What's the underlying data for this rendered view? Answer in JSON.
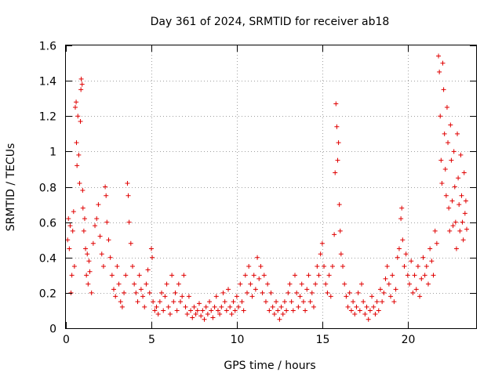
{
  "chart_data": {
    "type": "scatter",
    "title": "Day 361 of 2024, SRMTID for receiver ab18",
    "xlabel": "GPS time / hours",
    "ylabel": "SRMTID / TECUs",
    "xlim": [
      0,
      24
    ],
    "ylim": [
      0,
      1.6
    ],
    "xticks": [
      0,
      5,
      10,
      15,
      20
    ],
    "xtick_labels": [
      "0",
      "5",
      "10",
      "15",
      "20"
    ],
    "yticks": [
      0,
      0.2,
      0.4,
      0.6,
      0.8,
      1,
      1.2,
      1.4,
      1.6
    ],
    "ytick_labels": [
      "0",
      "0.2",
      "0.4",
      "0.6",
      "0.8",
      "1",
      "1.2",
      "1.4",
      "1.6"
    ],
    "grid": true,
    "marker": "+",
    "color": "#e00000",
    "series": [
      {
        "name": "SRMTID",
        "points": [
          [
            0.1,
            0.5
          ],
          [
            0.15,
            0.62
          ],
          [
            0.2,
            0.45
          ],
          [
            0.25,
            0.58
          ],
          [
            0.3,
            0.2
          ],
          [
            0.35,
            0.3
          ],
          [
            0.4,
            0.55
          ],
          [
            0.45,
            0.66
          ],
          [
            0.5,
            0.35
          ],
          [
            0.55,
            1.25
          ],
          [
            0.6,
            1.28
          ],
          [
            0.62,
            1.05
          ],
          [
            0.65,
            0.92
          ],
          [
            0.7,
            1.2
          ],
          [
            0.75,
            0.98
          ],
          [
            0.8,
            0.82
          ],
          [
            0.85,
            1.17
          ],
          [
            0.88,
            1.35
          ],
          [
            0.9,
            1.41
          ],
          [
            0.95,
            1.38
          ],
          [
            0.98,
            0.78
          ],
          [
            1.0,
            0.68
          ],
          [
            1.05,
            0.55
          ],
          [
            1.1,
            0.62
          ],
          [
            1.15,
            0.45
          ],
          [
            1.2,
            0.3
          ],
          [
            1.25,
            0.42
          ],
          [
            1.3,
            0.25
          ],
          [
            1.35,
            0.38
          ],
          [
            1.4,
            0.32
          ],
          [
            1.5,
            0.2
          ],
          [
            1.6,
            0.48
          ],
          [
            1.7,
            0.58
          ],
          [
            1.8,
            0.62
          ],
          [
            1.9,
            0.7
          ],
          [
            2.0,
            0.52
          ],
          [
            2.1,
            0.42
          ],
          [
            2.2,
            0.35
          ],
          [
            2.3,
            0.8
          ],
          [
            2.35,
            0.75
          ],
          [
            2.4,
            0.6
          ],
          [
            2.5,
            0.5
          ],
          [
            2.6,
            0.4
          ],
          [
            2.7,
            0.3
          ],
          [
            2.8,
            0.22
          ],
          [
            2.9,
            0.18
          ],
          [
            3.0,
            0.35
          ],
          [
            3.1,
            0.25
          ],
          [
            3.2,
            0.15
          ],
          [
            3.3,
            0.12
          ],
          [
            3.4,
            0.2
          ],
          [
            3.5,
            0.3
          ],
          [
            3.6,
            0.82
          ],
          [
            3.65,
            0.75
          ],
          [
            3.7,
            0.6
          ],
          [
            3.8,
            0.48
          ],
          [
            3.9,
            0.35
          ],
          [
            4.0,
            0.25
          ],
          [
            4.1,
            0.2
          ],
          [
            4.2,
            0.15
          ],
          [
            4.3,
            0.3
          ],
          [
            4.4,
            0.22
          ],
          [
            4.5,
            0.18
          ],
          [
            4.6,
            0.12
          ],
          [
            4.7,
            0.25
          ],
          [
            4.8,
            0.33
          ],
          [
            4.9,
            0.2
          ],
          [
            5.0,
            0.45
          ],
          [
            5.05,
            0.4
          ],
          [
            5.1,
            0.15
          ],
          [
            5.2,
            0.1
          ],
          [
            5.3,
            0.12
          ],
          [
            5.4,
            0.08
          ],
          [
            5.5,
            0.15
          ],
          [
            5.6,
            0.2
          ],
          [
            5.7,
            0.1
          ],
          [
            5.8,
            0.18
          ],
          [
            5.9,
            0.25
          ],
          [
            6.0,
            0.12
          ],
          [
            6.1,
            0.08
          ],
          [
            6.2,
            0.3
          ],
          [
            6.3,
            0.15
          ],
          [
            6.4,
            0.2
          ],
          [
            6.5,
            0.1
          ],
          [
            6.6,
            0.25
          ],
          [
            6.7,
            0.15
          ],
          [
            6.8,
            0.18
          ],
          [
            6.9,
            0.3
          ],
          [
            7.0,
            0.12
          ],
          [
            7.1,
            0.08
          ],
          [
            7.2,
            0.18
          ],
          [
            7.3,
            0.1
          ],
          [
            7.4,
            0.06
          ],
          [
            7.5,
            0.12
          ],
          [
            7.6,
            0.08
          ],
          [
            7.7,
            0.1
          ],
          [
            7.8,
            0.14
          ],
          [
            7.9,
            0.07
          ],
          [
            8.0,
            0.1
          ],
          [
            8.1,
            0.05
          ],
          [
            8.2,
            0.12
          ],
          [
            8.3,
            0.08
          ],
          [
            8.4,
            0.15
          ],
          [
            8.5,
            0.1
          ],
          [
            8.6,
            0.06
          ],
          [
            8.7,
            0.12
          ],
          [
            8.8,
            0.18
          ],
          [
            8.9,
            0.1
          ],
          [
            9.0,
            0.08
          ],
          [
            9.1,
            0.12
          ],
          [
            9.2,
            0.2
          ],
          [
            9.3,
            0.15
          ],
          [
            9.4,
            0.1
          ],
          [
            9.5,
            0.22
          ],
          [
            9.6,
            0.12
          ],
          [
            9.7,
            0.08
          ],
          [
            9.8,
            0.15
          ],
          [
            9.9,
            0.1
          ],
          [
            10.0,
            0.18
          ],
          [
            10.1,
            0.12
          ],
          [
            10.2,
            0.25
          ],
          [
            10.3,
            0.15
          ],
          [
            10.4,
            0.1
          ],
          [
            10.5,
            0.3
          ],
          [
            10.6,
            0.2
          ],
          [
            10.7,
            0.35
          ],
          [
            10.8,
            0.25
          ],
          [
            10.9,
            0.18
          ],
          [
            11.0,
            0.3
          ],
          [
            11.1,
            0.22
          ],
          [
            11.2,
            0.4
          ],
          [
            11.3,
            0.28
          ],
          [
            11.4,
            0.35
          ],
          [
            11.5,
            0.2
          ],
          [
            11.6,
            0.3
          ],
          [
            11.7,
            0.15
          ],
          [
            11.8,
            0.25
          ],
          [
            11.9,
            0.1
          ],
          [
            12.0,
            0.2
          ],
          [
            12.1,
            0.12
          ],
          [
            12.2,
            0.08
          ],
          [
            12.3,
            0.15
          ],
          [
            12.4,
            0.1
          ],
          [
            12.5,
            0.05
          ],
          [
            12.6,
            0.12
          ],
          [
            12.7,
            0.08
          ],
          [
            12.8,
            0.15
          ],
          [
            12.9,
            0.1
          ],
          [
            13.0,
            0.2
          ],
          [
            13.1,
            0.25
          ],
          [
            13.2,
            0.15
          ],
          [
            13.3,
            0.1
          ],
          [
            13.4,
            0.3
          ],
          [
            13.5,
            0.2
          ],
          [
            13.6,
            0.12
          ],
          [
            13.7,
            0.18
          ],
          [
            13.8,
            0.25
          ],
          [
            13.9,
            0.15
          ],
          [
            14.0,
            0.1
          ],
          [
            14.1,
            0.22
          ],
          [
            14.2,
            0.3
          ],
          [
            14.3,
            0.15
          ],
          [
            14.4,
            0.2
          ],
          [
            14.5,
            0.12
          ],
          [
            14.6,
            0.25
          ],
          [
            14.7,
            0.35
          ],
          [
            14.8,
            0.3
          ],
          [
            14.9,
            0.42
          ],
          [
            15.0,
            0.48
          ],
          [
            15.1,
            0.35
          ],
          [
            15.2,
            0.25
          ],
          [
            15.3,
            0.2
          ],
          [
            15.4,
            0.3
          ],
          [
            15.5,
            0.18
          ],
          [
            15.6,
            0.35
          ],
          [
            15.7,
            0.53
          ],
          [
            15.75,
            0.88
          ],
          [
            15.8,
            1.27
          ],
          [
            15.85,
            1.14
          ],
          [
            15.9,
            0.95
          ],
          [
            15.95,
            1.05
          ],
          [
            16.0,
            0.7
          ],
          [
            16.05,
            0.55
          ],
          [
            16.1,
            0.42
          ],
          [
            16.2,
            0.35
          ],
          [
            16.3,
            0.25
          ],
          [
            16.4,
            0.18
          ],
          [
            16.5,
            0.12
          ],
          [
            16.6,
            0.2
          ],
          [
            16.7,
            0.1
          ],
          [
            16.8,
            0.15
          ],
          [
            16.9,
            0.08
          ],
          [
            17.0,
            0.12
          ],
          [
            17.1,
            0.2
          ],
          [
            17.2,
            0.1
          ],
          [
            17.3,
            0.25
          ],
          [
            17.4,
            0.15
          ],
          [
            17.5,
            0.08
          ],
          [
            17.6,
            0.12
          ],
          [
            17.7,
            0.05
          ],
          [
            17.8,
            0.1
          ],
          [
            17.9,
            0.18
          ],
          [
            18.0,
            0.12
          ],
          [
            18.1,
            0.08
          ],
          [
            18.2,
            0.15
          ],
          [
            18.3,
            0.1
          ],
          [
            18.4,
            0.22
          ],
          [
            18.5,
            0.15
          ],
          [
            18.6,
            0.2
          ],
          [
            18.7,
            0.28
          ],
          [
            18.8,
            0.35
          ],
          [
            18.9,
            0.25
          ],
          [
            19.0,
            0.18
          ],
          [
            19.1,
            0.3
          ],
          [
            19.2,
            0.15
          ],
          [
            19.3,
            0.22
          ],
          [
            19.4,
            0.4
          ],
          [
            19.5,
            0.45
          ],
          [
            19.6,
            0.62
          ],
          [
            19.65,
            0.68
          ],
          [
            19.7,
            0.5
          ],
          [
            19.8,
            0.35
          ],
          [
            19.9,
            0.42
          ],
          [
            20.0,
            0.3
          ],
          [
            20.1,
            0.25
          ],
          [
            20.2,
            0.38
          ],
          [
            20.3,
            0.2
          ],
          [
            20.4,
            0.3
          ],
          [
            20.5,
            0.22
          ],
          [
            20.6,
            0.35
          ],
          [
            20.7,
            0.18
          ],
          [
            20.8,
            0.28
          ],
          [
            20.9,
            0.4
          ],
          [
            21.0,
            0.3
          ],
          [
            21.1,
            0.35
          ],
          [
            21.2,
            0.25
          ],
          [
            21.3,
            0.45
          ],
          [
            21.4,
            0.38
          ],
          [
            21.5,
            0.3
          ],
          [
            21.6,
            0.55
          ],
          [
            21.7,
            0.48
          ],
          [
            21.8,
            1.54
          ],
          [
            21.85,
            1.45
          ],
          [
            21.9,
            1.2
          ],
          [
            21.95,
            0.95
          ],
          [
            22.0,
            0.82
          ],
          [
            22.05,
            1.5
          ],
          [
            22.1,
            1.35
          ],
          [
            22.15,
            1.1
          ],
          [
            22.2,
            0.9
          ],
          [
            22.25,
            0.75
          ],
          [
            22.3,
            1.25
          ],
          [
            22.35,
            1.05
          ],
          [
            22.4,
            0.68
          ],
          [
            22.45,
            0.55
          ],
          [
            22.5,
            1.15
          ],
          [
            22.55,
            0.95
          ],
          [
            22.6,
            0.72
          ],
          [
            22.65,
            0.58
          ],
          [
            22.7,
            1.0
          ],
          [
            22.75,
            0.8
          ],
          [
            22.8,
            0.6
          ],
          [
            22.85,
            0.45
          ],
          [
            22.9,
            1.1
          ],
          [
            22.95,
            0.85
          ],
          [
            23.0,
            0.7
          ],
          [
            23.05,
            0.55
          ],
          [
            23.1,
            0.98
          ],
          [
            23.15,
            0.75
          ],
          [
            23.2,
            0.6
          ],
          [
            23.25,
            0.5
          ],
          [
            23.3,
            0.88
          ],
          [
            23.35,
            0.65
          ],
          [
            23.4,
            0.72
          ],
          [
            23.45,
            0.56
          ]
        ]
      }
    ]
  }
}
